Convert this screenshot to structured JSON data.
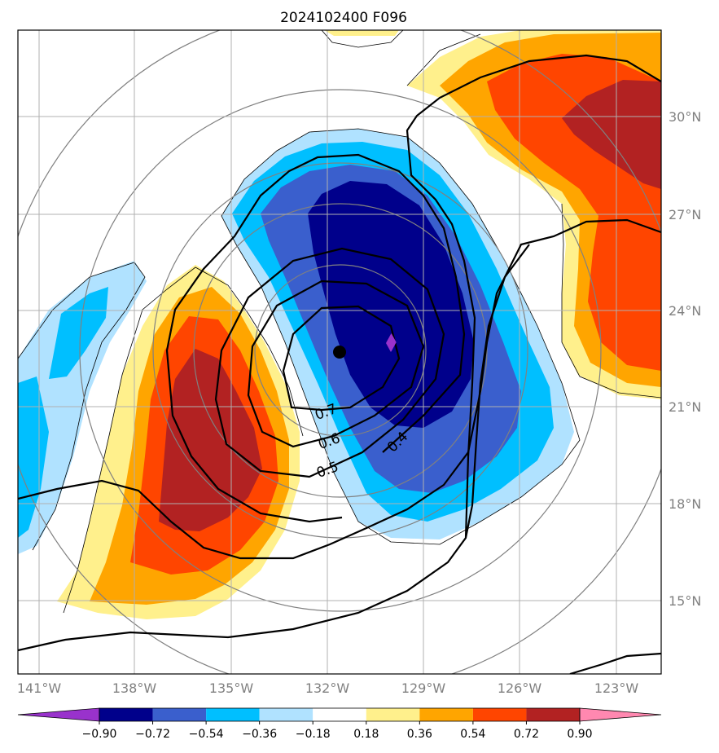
{
  "chart_data": {
    "type": "contour-map",
    "title": "2024102400 F096",
    "projection": "polar-stereographic regional map",
    "lon_ticks": [
      "141°W",
      "138°W",
      "135°W",
      "132°W",
      "129°W",
      "126°W",
      "123°W"
    ],
    "lat_ticks": [
      "30°N",
      "27°N",
      "24°N",
      "21°N",
      "18°N",
      "15°N"
    ],
    "filled_field": {
      "levels": [
        -0.9,
        -0.72,
        -0.54,
        -0.36,
        -0.18,
        0.18,
        0.36,
        0.54,
        0.72,
        0.9
      ],
      "colorbar_labels": [
        "−0.90",
        "−0.72",
        "−0.54",
        "−0.36",
        "−0.18",
        "0.18",
        "0.36",
        "0.54",
        "0.72",
        "0.90"
      ],
      "colors": [
        "#9932cc",
        "#00008b",
        "#3a5fcd",
        "#00bfff",
        "#b0e2ff",
        "#ffffff",
        "#fff08c",
        "#ffa500",
        "#ff4500",
        "#b22222",
        "#ff88b0"
      ],
      "colorbar_extend": "both"
    },
    "line_contours": {
      "labels": [
        "0.7",
        "0.6",
        "0.5",
        "0.4"
      ]
    },
    "markers": [
      {
        "type": "circle",
        "color": "#000000",
        "lat": 22.8,
        "lon": -131.5
      },
      {
        "type": "diamond",
        "color": "#9932cc",
        "lat": 23.0,
        "lon": -130.0
      }
    ]
  }
}
